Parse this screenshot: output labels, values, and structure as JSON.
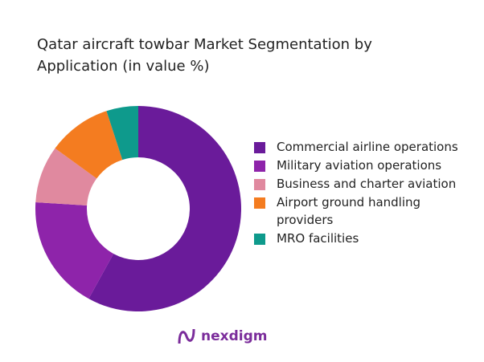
{
  "chart_data": {
    "type": "donut",
    "title": "Qatar aircraft towbar Market Segmentation by Application (in value %)",
    "categories": [
      "Commercial airline operations",
      "Military aviation operations",
      "Business and charter aviation",
      "Airport ground handling providers",
      "MRO facilities"
    ],
    "values": [
      58,
      18,
      9,
      10,
      5
    ],
    "colors": [
      "#6a1b9a",
      "#8e24aa",
      "#e0899f",
      "#f47c20",
      "#0e9a8c"
    ]
  },
  "brand": "nexdigm"
}
